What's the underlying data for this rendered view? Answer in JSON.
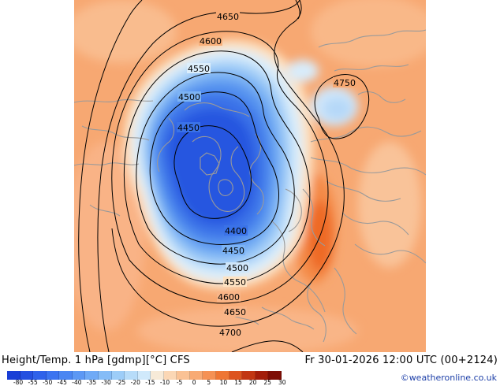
{
  "title": "Height/Temp. 1 hPa [gdmp][°C] CFS",
  "valid_time": "Fr 30-01-2026 12:00 UTC (00+2124)",
  "copyright": "©weatheronline.co.uk",
  "colorbar": {
    "labels": [
      "-80",
      "-55",
      "-50",
      "-45",
      "-40",
      "-35",
      "-30",
      "-25",
      "-20",
      "-15",
      "-10",
      "-5",
      "0",
      "5",
      "10",
      "15",
      "20",
      "25",
      "30"
    ],
    "colors": [
      "#1a3fd6",
      "#2450e0",
      "#2f62ea",
      "#3c74f0",
      "#4b86f2",
      "#5c98f4",
      "#6faaf6",
      "#85bcf7",
      "#9dcdf8",
      "#b7dcf9",
      "#d0e9fb",
      "#f7ead8",
      "#fbd7b5",
      "#fac295",
      "#f8aa74",
      "#f59154",
      "#ee7634",
      "#dd5420",
      "#c23612",
      "#a31d0a",
      "#7e0d05"
    ]
  },
  "contour_labels": [
    {
      "id": "4650-top",
      "text": "4650"
    },
    {
      "id": "4600-top",
      "text": "4600"
    },
    {
      "id": "4550-top",
      "text": "4550"
    },
    {
      "id": "4500-top",
      "text": "4500"
    },
    {
      "id": "4450-top",
      "text": "4450"
    },
    {
      "id": "4750",
      "text": "4750"
    },
    {
      "id": "4400",
      "text": "4400"
    },
    {
      "id": "4450-bot",
      "text": "4450"
    },
    {
      "id": "4500-bot",
      "text": "4500"
    },
    {
      "id": "4550-bot",
      "text": "4550"
    },
    {
      "id": "4600-bot",
      "text": "4600"
    },
    {
      "id": "4650-bot",
      "text": "4650"
    },
    {
      "id": "4700",
      "text": "4700"
    }
  ],
  "map": {
    "background_color": "#f7a76e",
    "cold_core_color": "#1f4fe0",
    "warm_anomaly_color": "#f26a26",
    "coastline_color": "#9a9a9a",
    "contour_color": "#000000"
  }
}
